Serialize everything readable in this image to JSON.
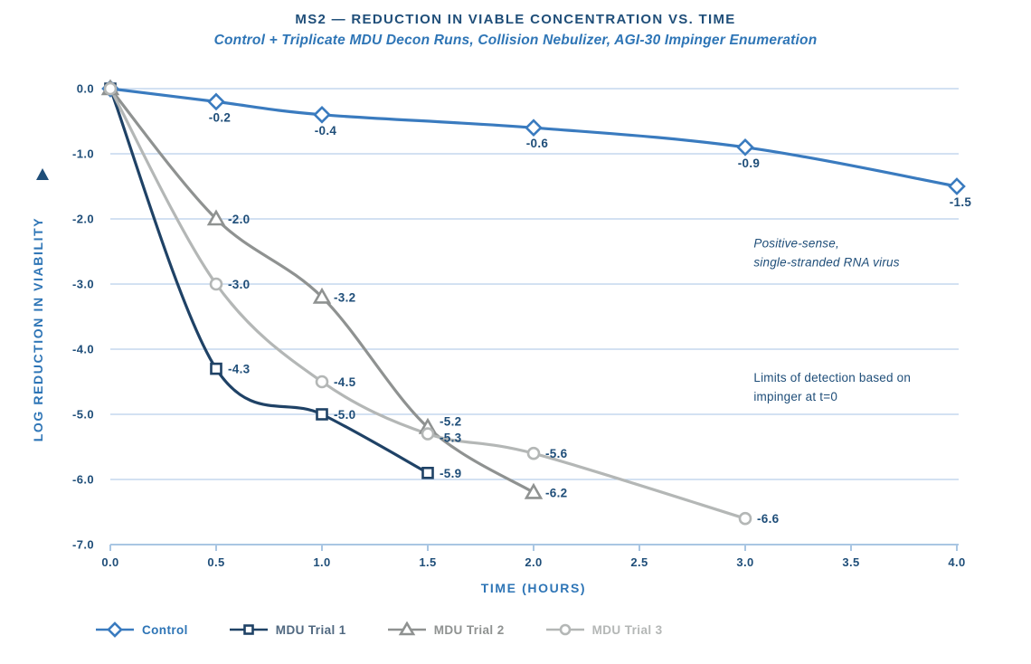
{
  "header": {
    "title": "MS2 — REDUCTION IN VIABLE CONCENTRATION VS. TIME",
    "subtitle": "Control + Triplicate MDU Decon Runs, Collision Nebulizer, AGI-30 Impinger Enumeration"
  },
  "colors": {
    "title": "#1f4e79",
    "subtitle": "#2e75b6",
    "grid": "#b9cfe9",
    "axis_line": "#a9c6e3",
    "tick_label": "#1f4e79",
    "data_label": "#1f4e79",
    "annotation": "#1f4e79",
    "y_axis_arrow": "#1f4e79"
  },
  "icons": {
    "y_axis_arrow": "triangle-up-icon"
  },
  "chart_data": {
    "type": "line",
    "title": "MS2 — REDUCTION IN VIABLE CONCENTRATION VS. TIME",
    "subtitle": "Control + Triplicate MDU Decon Runs, Collision Nebulizer, AGI-30 Impinger Enumeration",
    "xlabel": "TIME (HOURS)",
    "ylabel": "LOG REDUCTION IN VIABILITY",
    "xlim": [
      0.0,
      4.0
    ],
    "ylim": [
      -7.0,
      0.0
    ],
    "x_ticks": [
      "0.0",
      "0.5",
      "1.0",
      "1.5",
      "2.0",
      "2.5",
      "3.0",
      "3.5",
      "4.0"
    ],
    "y_ticks": [
      "0.0",
      "-1.0",
      "-2.0",
      "-3.0",
      "-4.0",
      "-5.0",
      "-6.0",
      "-7.0"
    ],
    "grid": "horizontal",
    "legend_position": "bottom-left",
    "series": [
      {
        "name": "Control",
        "marker": "diamond",
        "color": "#3a7bbf",
        "legend_label_color": "#2e75b6",
        "label_side": "below",
        "points": [
          [
            0.0,
            0.0
          ],
          [
            0.5,
            -0.2
          ],
          [
            1.0,
            -0.4
          ],
          [
            2.0,
            -0.6
          ],
          [
            3.0,
            -0.9
          ],
          [
            4.0,
            -1.5
          ]
        ],
        "labels": [
          null,
          "-0.2",
          "-0.4",
          "-0.6",
          "-0.9",
          "-1.5"
        ]
      },
      {
        "name": "MDU Trial 1",
        "marker": "square",
        "color": "#1f4266",
        "legend_label_color": "#506880",
        "label_side": "right",
        "points": [
          [
            0.0,
            0.0
          ],
          [
            0.5,
            -4.3
          ],
          [
            1.0,
            -5.0
          ],
          [
            1.5,
            -5.9
          ]
        ],
        "labels": [
          null,
          "-4.3",
          "-5.0",
          "-5.9"
        ]
      },
      {
        "name": "MDU Trial 2",
        "marker": "triangle",
        "color": "#8f9291",
        "legend_label_color": "#8f9291",
        "label_side": "right",
        "points": [
          [
            0.0,
            0.0
          ],
          [
            0.5,
            -2.0
          ],
          [
            1.0,
            -3.2
          ],
          [
            1.5,
            -5.2
          ],
          [
            2.0,
            -6.2
          ]
        ],
        "labels": [
          null,
          "-2.0",
          "-3.2",
          "-5.2",
          "-6.2"
        ],
        "label_nudges": {
          "3": [
            0,
            -7
          ]
        }
      },
      {
        "name": "MDU Trial 3",
        "marker": "circle",
        "color": "#b4b7b6",
        "legend_label_color": "#b4b7b6",
        "label_side": "right",
        "points": [
          [
            0.0,
            0.0
          ],
          [
            0.5,
            -3.0
          ],
          [
            1.0,
            -4.5
          ],
          [
            1.5,
            -5.3
          ],
          [
            2.0,
            -5.6
          ],
          [
            3.0,
            -6.6
          ]
        ],
        "labels": [
          null,
          "-3.0",
          "-4.5",
          "-5.3",
          "-5.6",
          "-6.6"
        ],
        "label_nudges": {
          "3": [
            0,
            4
          ]
        }
      }
    ],
    "annotations": [
      {
        "lines": [
          "Positive-sense,",
          "single-stranded RNA virus"
        ],
        "x": 3.04,
        "y": -2.44,
        "style": "italic"
      },
      {
        "lines": [
          "Limits of detection based on",
          "impinger at t=0"
        ],
        "x": 3.04,
        "y": -4.5,
        "style": "normal"
      }
    ]
  }
}
